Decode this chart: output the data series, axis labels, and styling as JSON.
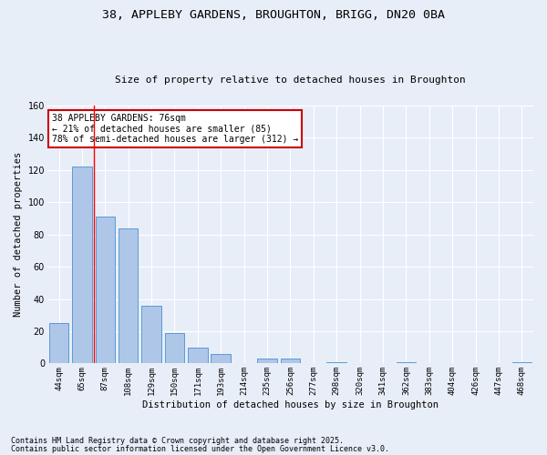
{
  "title_line1": "38, APPLEBY GARDENS, BROUGHTON, BRIGG, DN20 0BA",
  "title_line2": "Size of property relative to detached houses in Broughton",
  "xlabel": "Distribution of detached houses by size in Broughton",
  "ylabel": "Number of detached properties",
  "categories": [
    "44sqm",
    "65sqm",
    "87sqm",
    "108sqm",
    "129sqm",
    "150sqm",
    "171sqm",
    "193sqm",
    "214sqm",
    "235sqm",
    "256sqm",
    "277sqm",
    "298sqm",
    "320sqm",
    "341sqm",
    "362sqm",
    "383sqm",
    "404sqm",
    "426sqm",
    "447sqm",
    "468sqm"
  ],
  "values": [
    25,
    122,
    91,
    84,
    36,
    19,
    10,
    6,
    0,
    3,
    3,
    0,
    1,
    0,
    0,
    1,
    0,
    0,
    0,
    0,
    1
  ],
  "bar_color": "#aec6e8",
  "bar_edge_color": "#5b9bd5",
  "background_color": "#e8eef8",
  "grid_color": "#ffffff",
  "red_line_x": 1.5,
  "annotation_box_text": "38 APPLEBY GARDENS: 76sqm\n← 21% of detached houses are smaller (85)\n78% of semi-detached houses are larger (312) →",
  "annotation_box_color": "#ffffff",
  "annotation_box_edge_color": "#cc0000",
  "footnote_line1": "Contains HM Land Registry data © Crown copyright and database right 2025.",
  "footnote_line2": "Contains public sector information licensed under the Open Government Licence v3.0.",
  "ylim": [
    0,
    160
  ],
  "yticks": [
    0,
    20,
    40,
    60,
    80,
    100,
    120,
    140,
    160
  ]
}
